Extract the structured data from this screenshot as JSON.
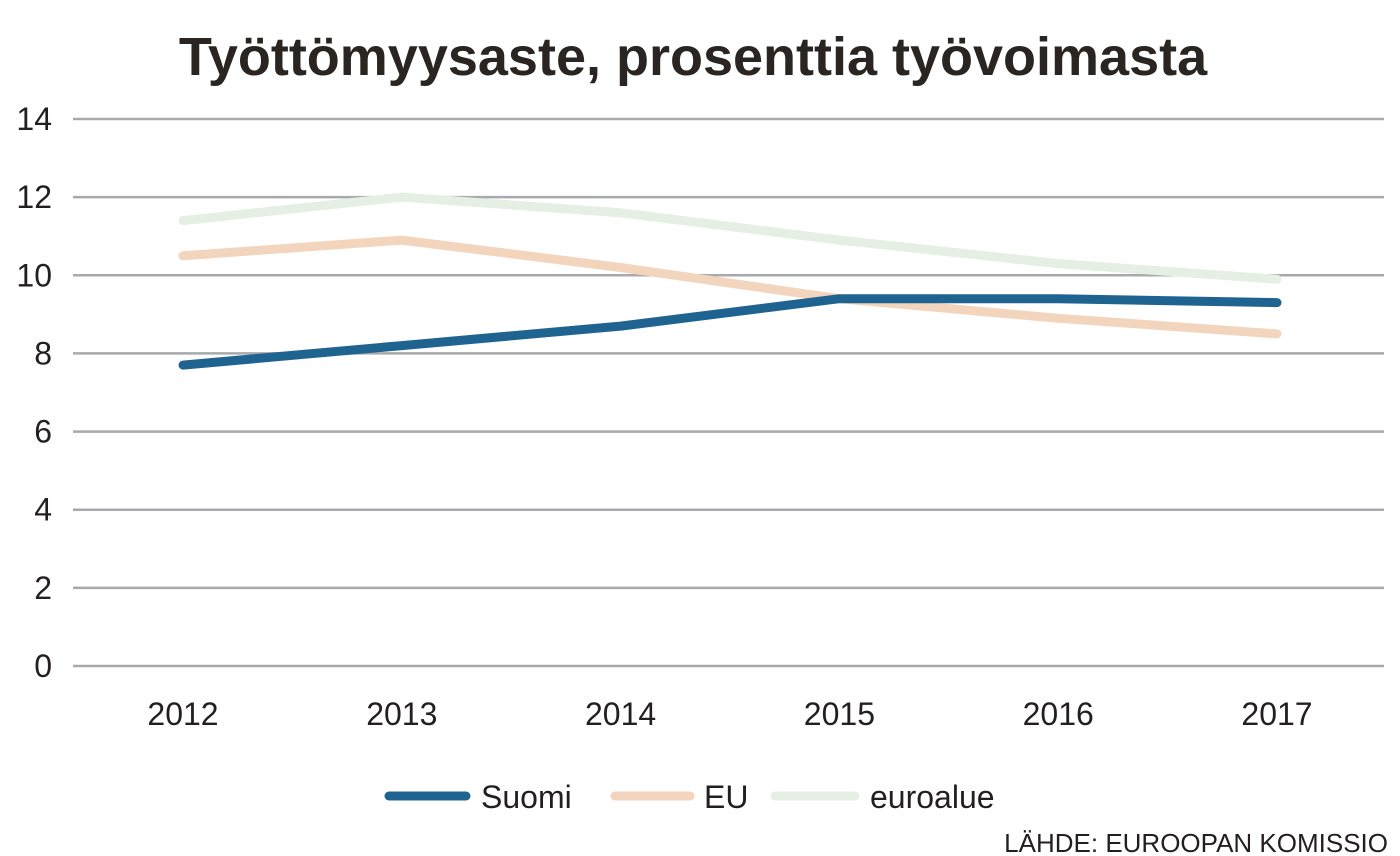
{
  "chart_data": {
    "type": "line",
    "title": "Työttömyysaste, prosenttia työvoimasta",
    "xlabel": "",
    "ylabel": "",
    "categories": [
      "2012",
      "2013",
      "2014",
      "2015",
      "2016",
      "2017"
    ],
    "ylim": [
      0,
      14
    ],
    "yticks": [
      0,
      2,
      4,
      6,
      8,
      10,
      12,
      14
    ],
    "grid": true,
    "legend_position": "bottom",
    "series": [
      {
        "name": "Suomi",
        "color": "#1f6390",
        "values": [
          7.7,
          8.2,
          8.7,
          9.4,
          9.4,
          9.3
        ]
      },
      {
        "name": "EU",
        "color": "#f3d5bd",
        "values": [
          10.5,
          10.9,
          10.2,
          9.4,
          8.9,
          8.5
        ]
      },
      {
        "name": "euroalue",
        "color": "#e5efe3",
        "values": [
          11.4,
          12.0,
          11.6,
          10.9,
          10.3,
          9.9
        ]
      }
    ],
    "source": "LÄHDE: EUROOPAN KOMISSIO"
  }
}
